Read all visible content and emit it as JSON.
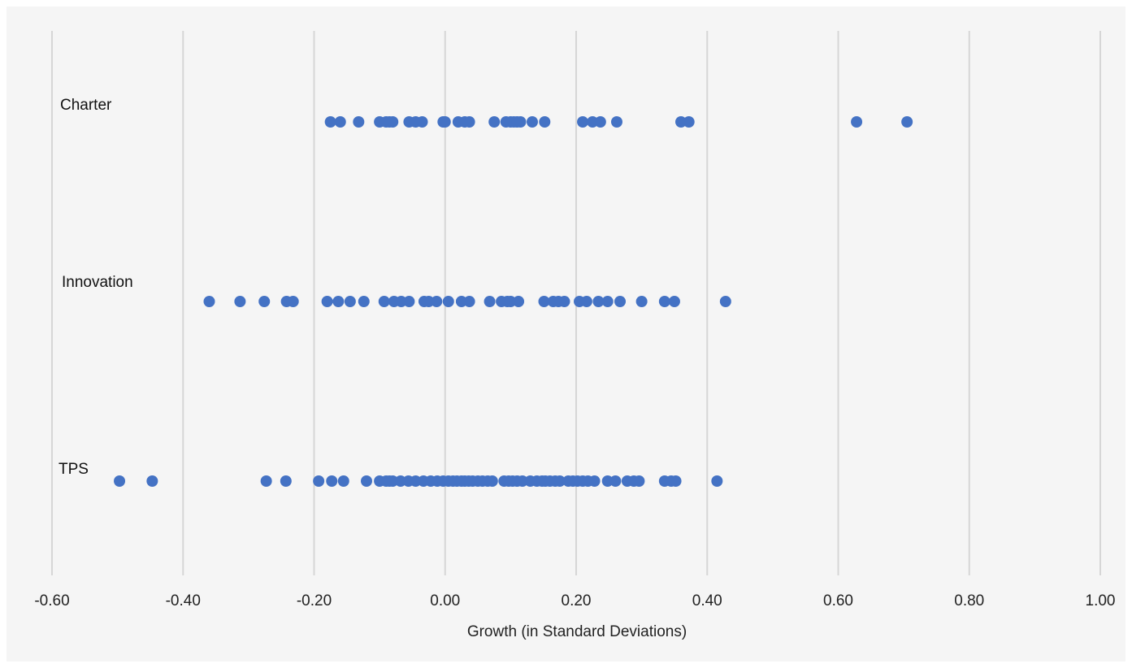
{
  "chart_data": {
    "type": "scatter",
    "xlabel": "Growth (in Standard Deviations)",
    "xlim": [
      -0.6,
      1.0
    ],
    "xticks": [
      -0.6,
      -0.4,
      -0.2,
      0.0,
      0.2,
      0.4,
      0.6,
      0.8,
      1.0
    ],
    "xtick_labels": [
      "-0.60",
      "-0.40",
      "-0.20",
      "0.00",
      "0.20",
      "0.40",
      "0.60",
      "0.80",
      "1.00"
    ],
    "grid": "vertical",
    "marker_color": "#4472c4",
    "series": [
      {
        "name": "Charter",
        "values": [
          -0.175,
          -0.16,
          -0.132,
          -0.1,
          -0.09,
          -0.085,
          -0.08,
          -0.055,
          -0.045,
          -0.035,
          -0.003,
          0.0,
          0.02,
          0.03,
          0.037,
          0.075,
          0.093,
          0.1,
          0.105,
          0.11,
          0.115,
          0.133,
          0.152,
          0.21,
          0.225,
          0.237,
          0.262,
          0.36,
          0.372,
          0.628,
          0.705
        ]
      },
      {
        "name": "Innovation",
        "values": [
          -0.36,
          -0.313,
          -0.276,
          -0.242,
          -0.232,
          -0.18,
          -0.163,
          -0.145,
          -0.124,
          -0.093,
          -0.078,
          -0.067,
          -0.055,
          -0.032,
          -0.025,
          -0.013,
          0.005,
          0.025,
          0.037,
          0.068,
          0.086,
          0.095,
          0.1,
          0.112,
          0.151,
          0.165,
          0.173,
          0.182,
          0.205,
          0.216,
          0.234,
          0.248,
          0.267,
          0.3,
          0.335,
          0.35,
          0.428
        ]
      },
      {
        "name": "TPS",
        "values": [
          -0.497,
          -0.447,
          -0.273,
          -0.243,
          -0.193,
          -0.173,
          -0.155,
          -0.12,
          -0.1,
          -0.09,
          -0.085,
          -0.08,
          -0.068,
          -0.056,
          -0.045,
          -0.033,
          -0.022,
          -0.012,
          -0.003,
          0.005,
          0.012,
          0.018,
          0.025,
          0.03,
          0.036,
          0.042,
          0.05,
          0.057,
          0.065,
          0.072,
          0.09,
          0.097,
          0.103,
          0.11,
          0.118,
          0.13,
          0.14,
          0.148,
          0.153,
          0.16,
          0.168,
          0.175,
          0.188,
          0.195,
          0.202,
          0.21,
          0.218,
          0.228,
          0.248,
          0.26,
          0.278,
          0.288,
          0.296,
          0.335,
          0.345,
          0.352,
          0.415
        ]
      }
    ]
  }
}
